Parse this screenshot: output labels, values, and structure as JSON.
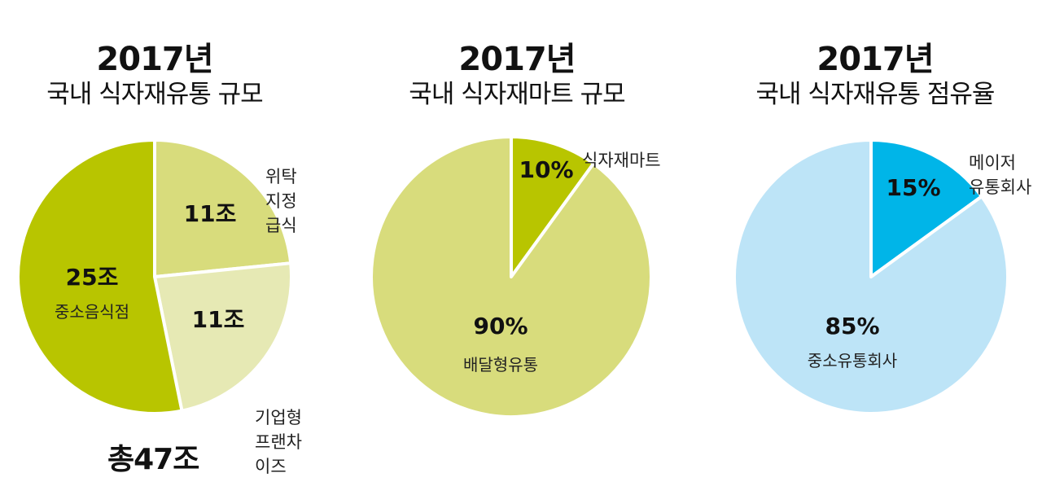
{
  "chart_data": [
    {
      "type": "pie",
      "title": "2017년",
      "subtitle": "국내 식자재유통 규모",
      "total_label": "총47조",
      "slices": [
        {
          "label_lines": [
            "위탁",
            "지정급식"
          ],
          "value": 11,
          "value_label": "11조",
          "color": "#d8dc7c",
          "external": true
        },
        {
          "label_lines": [
            "기업형",
            "프랜차이즈"
          ],
          "value": 11,
          "value_label": "11조",
          "color": "#e6e9b4",
          "external": true
        },
        {
          "label_lines": [
            "중소음식점"
          ],
          "value": 25,
          "value_label": "25조",
          "color": "#b8c500",
          "external": false
        }
      ]
    },
    {
      "type": "pie",
      "title": "2017년",
      "subtitle": "국내 식자재마트 규모",
      "slices": [
        {
          "label_lines": [
            "식자재마트"
          ],
          "value": 10,
          "value_label": "10%",
          "color": "#b8c500",
          "external": true
        },
        {
          "label_lines": [
            "배달형유통"
          ],
          "value": 90,
          "value_label": "90%",
          "color": "#d8dc7c",
          "external": false
        }
      ]
    },
    {
      "type": "pie",
      "title": "2017년",
      "subtitle": "국내 식자재유통 점유율",
      "slices": [
        {
          "label_lines": [
            "메이저",
            "유통회사"
          ],
          "value": 15,
          "value_label": "15%",
          "color": "#00b5e8",
          "external": true
        },
        {
          "label_lines": [
            "중소유통회사"
          ],
          "value": 85,
          "value_label": "85%",
          "color": "#bde4f7",
          "external": false
        }
      ]
    }
  ]
}
